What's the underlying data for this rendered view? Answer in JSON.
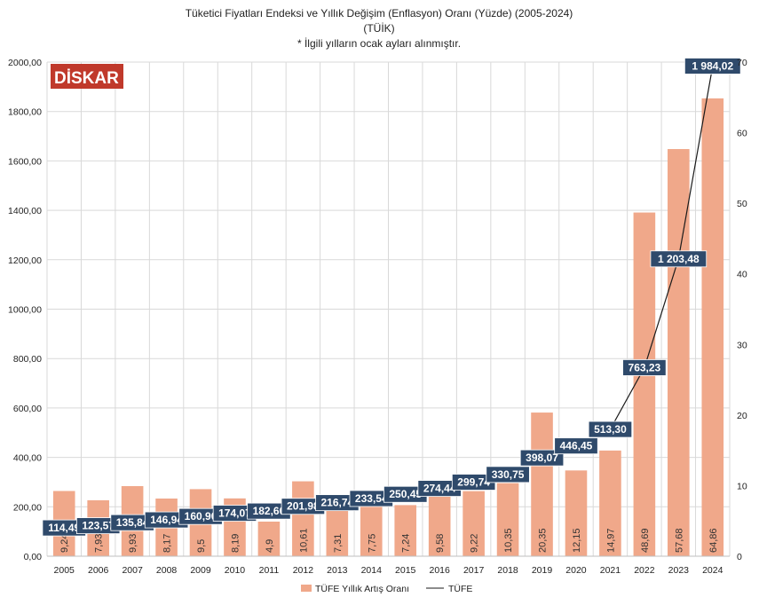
{
  "title_lines": [
    "Tüketici Fiyatları Endeksi ve Yıllık Değişim (Enflasyon) Oranı (Yüzde) (2005-2024)",
    "(TÜİK)",
    "* İlgili yılların ocak ayları alınmıştır."
  ],
  "logo": {
    "text": "DİSKAR",
    "color": "#c0392b"
  },
  "colors": {
    "bar": "#f0a88a",
    "line": "#1a1a1a",
    "label_bg": "#2f4a6b",
    "grid": "#d9d9d9"
  },
  "chart_data": {
    "type": "bar+line",
    "categories": [
      "2005",
      "2006",
      "2007",
      "2008",
      "2009",
      "2010",
      "2011",
      "2012",
      "2013",
      "2014",
      "2015",
      "2016",
      "2017",
      "2018",
      "2019",
      "2020",
      "2021",
      "2022",
      "2023",
      "2024"
    ],
    "series": [
      {
        "name": "TÜFE Yıllık Artış Oranı",
        "type": "bar",
        "axis": "right",
        "values": [
          9.24,
          7.93,
          9.93,
          8.17,
          9.5,
          8.19,
          4.9,
          10.61,
          7.31,
          7.75,
          7.24,
          9.58,
          9.22,
          10.35,
          20.35,
          12.15,
          14.97,
          48.69,
          57.68,
          64.86
        ],
        "labels": [
          "9,24",
          "7,93",
          "9,93",
          "8,17",
          "9,5",
          "8,19",
          "4,9",
          "10,61",
          "7,31",
          "7,75",
          "7,24",
          "9,58",
          "9,22",
          "10,35",
          "20,35",
          "12,15",
          "14,97",
          "48,69",
          "57,68",
          "64,86"
        ]
      },
      {
        "name": "TÜFE",
        "type": "line",
        "axis": "left",
        "values": [
          114.49,
          123.57,
          135.84,
          146.94,
          160.9,
          174.07,
          182.6,
          201.98,
          216.74,
          233.54,
          250.45,
          274.44,
          299.74,
          330.75,
          398.07,
          446.45,
          513.3,
          763.23,
          1203.48,
          1984.02
        ],
        "labels": [
          "114,49",
          "123,57",
          "135,84",
          "146,94",
          "160,90",
          "174,07",
          "182,60",
          "201,98",
          "216,74",
          "233,54",
          "250,45",
          "274,44",
          "299,74",
          "330,75",
          "398,07",
          "446,45",
          "513,30",
          "763,23",
          "1 203,48",
          "1 984,02"
        ]
      }
    ],
    "left_axis": {
      "range": [
        0,
        2000
      ],
      "ticks": [
        "0,00",
        "200,00",
        "400,00",
        "600,00",
        "800,00",
        "1000,00",
        "1200,00",
        "1400,00",
        "1600,00",
        "1800,00",
        "2000,00"
      ]
    },
    "right_axis": {
      "range": [
        0,
        70
      ],
      "ticks": [
        "0",
        "10",
        "20",
        "30",
        "40",
        "50",
        "60",
        "70"
      ]
    },
    "grid": true,
    "legend_position": "bottom"
  }
}
